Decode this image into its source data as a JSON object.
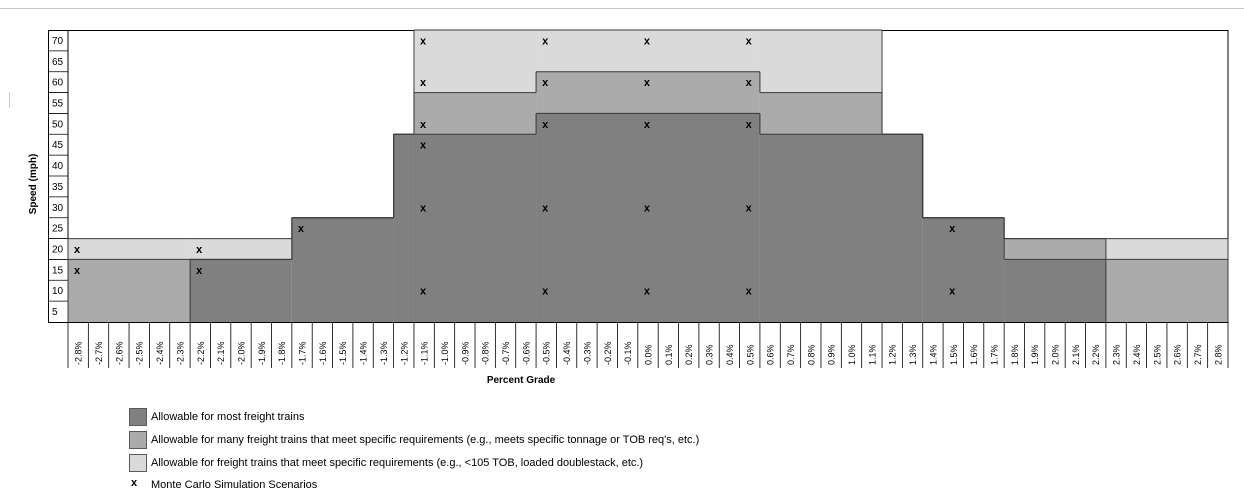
{
  "chart_data": {
    "type": "heatmap",
    "title": "",
    "xlabel": "Percent Grade",
    "ylabel": "Speed (mph)",
    "x_categories": [
      "-2.8%",
      "-2.7%",
      "-2.6%",
      "-2.5%",
      "-2.4%",
      "-2.3%",
      "-2.2%",
      "-2.1%",
      "-2.0%",
      "-1.9%",
      "-1.8%",
      "-1.7%",
      "-1.6%",
      "-1.5%",
      "-1.4%",
      "-1.3%",
      "-1.2%",
      "-1.1%",
      "-1.0%",
      "-0.9%",
      "-0.8%",
      "-0.7%",
      "-0.6%",
      "-0.5%",
      "-0.4%",
      "-0.3%",
      "-0.2%",
      "-0.1%",
      "0.0%",
      "0.1%",
      "0.2%",
      "0.3%",
      "0.4%",
      "0.5%",
      "0.6%",
      "0.7%",
      "0.8%",
      "0.9%",
      "1.0%",
      "1.1%",
      "1.2%",
      "1.3%",
      "1.4%",
      "1.5%",
      "1.6%",
      "1.7%",
      "1.8%",
      "1.9%",
      "2.0%",
      "2.1%",
      "2.2%",
      "2.3%",
      "2.4%",
      "2.5%",
      "2.6%",
      "2.7%",
      "2.8%"
    ],
    "y_categories": [
      5,
      10,
      15,
      20,
      25,
      30,
      35,
      40,
      45,
      50,
      55,
      60,
      65,
      70
    ],
    "categories": {
      "most": {
        "label": "Allowable for most freight trains",
        "color": "#808080"
      },
      "many": {
        "label": "Allowable for many freight trains that meet specific requirements (e.g., meets specific tonnage or TOB req's, etc.)",
        "color": "#ababab"
      },
      "some": {
        "label": "Allowable for freight trains that meet specific requirements (e.g., <105 TOB, loaded doublestack, etc.)",
        "color": "#dadada"
      }
    },
    "allowable_max_speed_by_grade": [
      {
        "grades": [
          "-2.8%",
          "-2.3%"
        ],
        "most": 0,
        "many": 15,
        "some": 20
      },
      {
        "grades": [
          "-2.2%",
          "-1.8%"
        ],
        "most": 15,
        "many": 15,
        "some": 20
      },
      {
        "grades": [
          "-1.7%",
          "-1.3%"
        ],
        "most": 25,
        "many": 25,
        "some": 25
      },
      {
        "grades": [
          "-1.2%",
          "-1.2%"
        ],
        "most": 45,
        "many": 45,
        "some": 45
      },
      {
        "grades": [
          "-1.1%",
          "-0.6%"
        ],
        "most": 45,
        "many": 55,
        "some": 70
      },
      {
        "grades": [
          "-0.5%",
          "0.5%"
        ],
        "most": 50,
        "many": 60,
        "some": 70
      },
      {
        "grades": [
          "0.6%",
          "1.1%"
        ],
        "most": 45,
        "many": 55,
        "some": 70
      },
      {
        "grades": [
          "1.2%",
          "1.3%"
        ],
        "most": 45,
        "many": 45,
        "some": 45
      },
      {
        "grades": [
          "1.4%",
          "1.7%"
        ],
        "most": 25,
        "many": 25,
        "some": 25
      },
      {
        "grades": [
          "1.8%",
          "2.2%"
        ],
        "most": 15,
        "many": 20,
        "some": 20
      },
      {
        "grades": [
          "2.3%",
          "2.8%"
        ],
        "most": 0,
        "many": 15,
        "some": 20
      }
    ],
    "scenario_marker": "x",
    "monte_carlo_scenarios": [
      {
        "grade": "-2.8%",
        "speed": 20
      },
      {
        "grade": "-2.8%",
        "speed": 15
      },
      {
        "grade": "-2.2%",
        "speed": 20
      },
      {
        "grade": "-2.2%",
        "speed": 15
      },
      {
        "grade": "-1.7%",
        "speed": 25
      },
      {
        "grade": "-1.1%",
        "speed": 70
      },
      {
        "grade": "-1.1%",
        "speed": 60
      },
      {
        "grade": "-1.1%",
        "speed": 50
      },
      {
        "grade": "-1.1%",
        "speed": 45
      },
      {
        "grade": "-1.1%",
        "speed": 30
      },
      {
        "grade": "-1.1%",
        "speed": 10
      },
      {
        "grade": "-0.5%",
        "speed": 70
      },
      {
        "grade": "-0.5%",
        "speed": 60
      },
      {
        "grade": "-0.5%",
        "speed": 50
      },
      {
        "grade": "-0.5%",
        "speed": 30
      },
      {
        "grade": "-0.5%",
        "speed": 10
      },
      {
        "grade": "0.0%",
        "speed": 70
      },
      {
        "grade": "0.0%",
        "speed": 60
      },
      {
        "grade": "0.0%",
        "speed": 50
      },
      {
        "grade": "0.0%",
        "speed": 30
      },
      {
        "grade": "0.0%",
        "speed": 10
      },
      {
        "grade": "0.5%",
        "speed": 70
      },
      {
        "grade": "0.5%",
        "speed": 60
      },
      {
        "grade": "0.5%",
        "speed": 50
      },
      {
        "grade": "0.5%",
        "speed": 30
      },
      {
        "grade": "0.5%",
        "speed": 10
      },
      {
        "grade": "1.5%",
        "speed": 25
      },
      {
        "grade": "1.5%",
        "speed": 10
      }
    ],
    "legend": {
      "position": "bottom-left",
      "entries": [
        {
          "key": "most",
          "text": "Allowable for most freight trains"
        },
        {
          "key": "many",
          "text": "Allowable for many freight trains that meet specific requirements (e.g., meets specific tonnage or TOB req's, etc.)"
        },
        {
          "key": "some",
          "text": "Allowable for freight trains that meet specific requirements (e.g., <105 TOB, loaded doublestack, etc.)"
        },
        {
          "key": "x",
          "text": "Monte Carlo Simulation Scenarios"
        }
      ]
    }
  }
}
